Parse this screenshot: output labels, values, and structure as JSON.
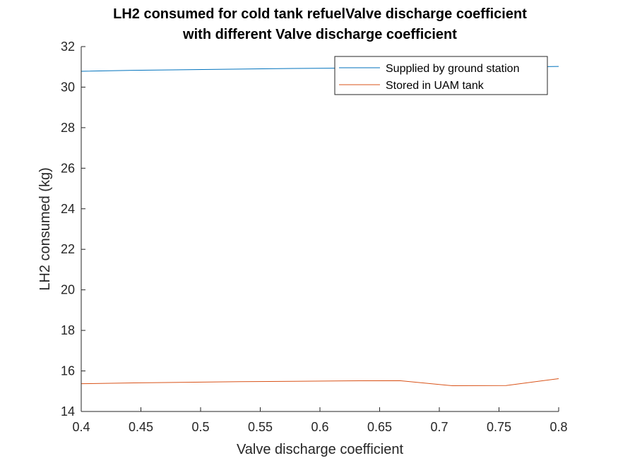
{
  "chart_data": {
    "type": "line",
    "title": [
      "LH2 consumed for cold tank refuelValve discharge coefficient",
      "with different Valve discharge coefficient"
    ],
    "xlabel": "Valve discharge coefficient",
    "ylabel": "LH2 consumed (kg)",
    "xlim": [
      0.4,
      0.8
    ],
    "ylim": [
      14,
      32
    ],
    "xticks": [
      0.4,
      0.45,
      0.5,
      0.55,
      0.6,
      0.65,
      0.7,
      0.75,
      0.8
    ],
    "xtick_labels": [
      "0.4",
      "0.45",
      "0.5",
      "0.55",
      "0.6",
      "0.65",
      "0.7",
      "0.75",
      "0.8"
    ],
    "yticks": [
      14,
      16,
      18,
      20,
      22,
      24,
      26,
      28,
      30,
      32
    ],
    "ytick_labels": [
      "14",
      "16",
      "18",
      "20",
      "22",
      "24",
      "26",
      "28",
      "30",
      "32"
    ],
    "grid": false,
    "legend_position": "top-right",
    "series": [
      {
        "name": "Supplied by ground station",
        "color": "#0072BD",
        "x": [
          0.4,
          0.444,
          0.489,
          0.533,
          0.578,
          0.622,
          0.667,
          0.711,
          0.756,
          0.8
        ],
        "y": [
          30.78,
          30.83,
          30.86,
          30.89,
          30.92,
          30.94,
          30.96,
          30.98,
          30.99,
          31.02
        ]
      },
      {
        "name": "Stored in UAM tank",
        "color": "#D95319",
        "x": [
          0.4,
          0.444,
          0.489,
          0.533,
          0.578,
          0.622,
          0.667,
          0.711,
          0.756,
          0.8
        ],
        "y": [
          15.37,
          15.41,
          15.44,
          15.47,
          15.49,
          15.51,
          15.52,
          15.27,
          15.28,
          15.62
        ]
      }
    ]
  }
}
